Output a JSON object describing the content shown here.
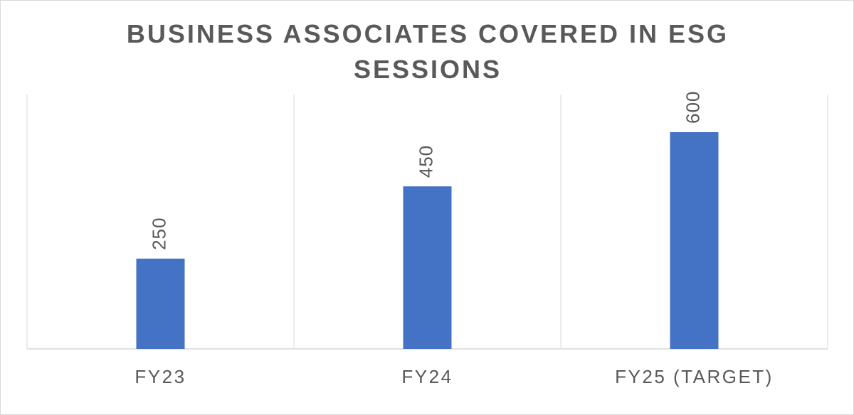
{
  "chart_data": {
    "type": "bar",
    "title": "BUSINESS ASSOCIATES COVERED IN ESG SESSIONS",
    "categories": [
      "FY23",
      "FY24",
      "FY25 (TARGET)"
    ],
    "values": [
      250,
      450,
      600
    ],
    "color": "#4472c4"
  }
}
